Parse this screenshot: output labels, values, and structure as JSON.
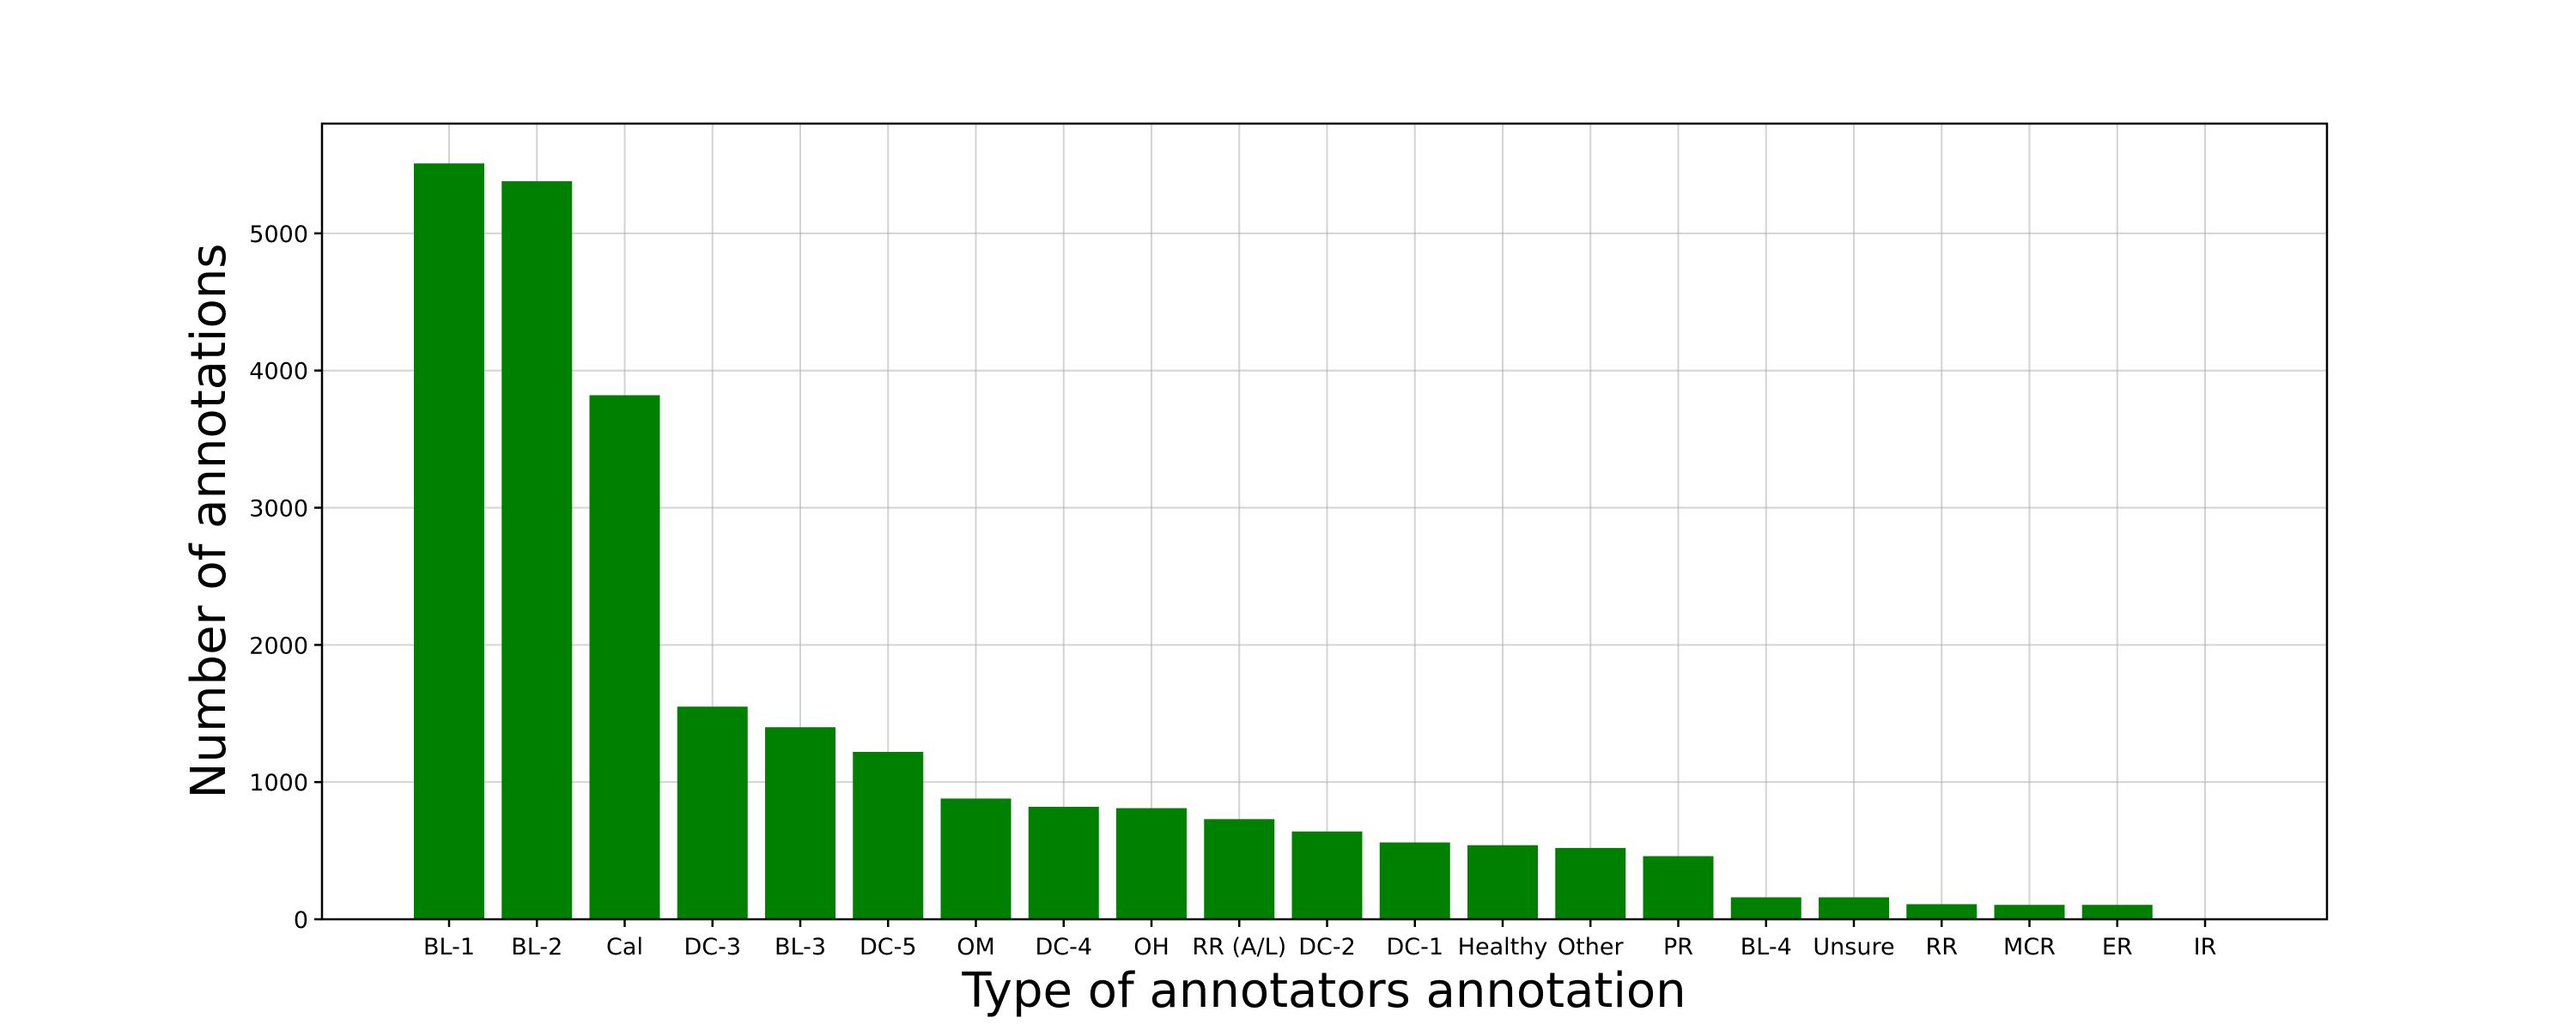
{
  "chart_data": {
    "type": "bar",
    "title": "",
    "xlabel": "Type of annotators annotation",
    "ylabel": "Number of annotations",
    "categories": [
      "BL-1",
      "BL-2",
      "Cal",
      "DC-3",
      "BL-3",
      "DC-5",
      "OM",
      "DC-4",
      "OH",
      "RR (A/L)",
      "DC-2",
      "DC-1",
      "Healthy",
      "Other",
      "PR",
      "BL-4",
      "Unsure",
      "RR",
      "MCR",
      "ER",
      "IR"
    ],
    "values": [
      5510,
      5380,
      3820,
      1550,
      1400,
      1220,
      880,
      820,
      810,
      730,
      640,
      560,
      540,
      520,
      460,
      160,
      160,
      110,
      105,
      105,
      0
    ],
    "ylim": [
      0,
      5800
    ],
    "yticks": [
      0,
      1000,
      2000,
      3000,
      4000,
      5000
    ],
    "grid": true,
    "bar_color": "#008000"
  }
}
